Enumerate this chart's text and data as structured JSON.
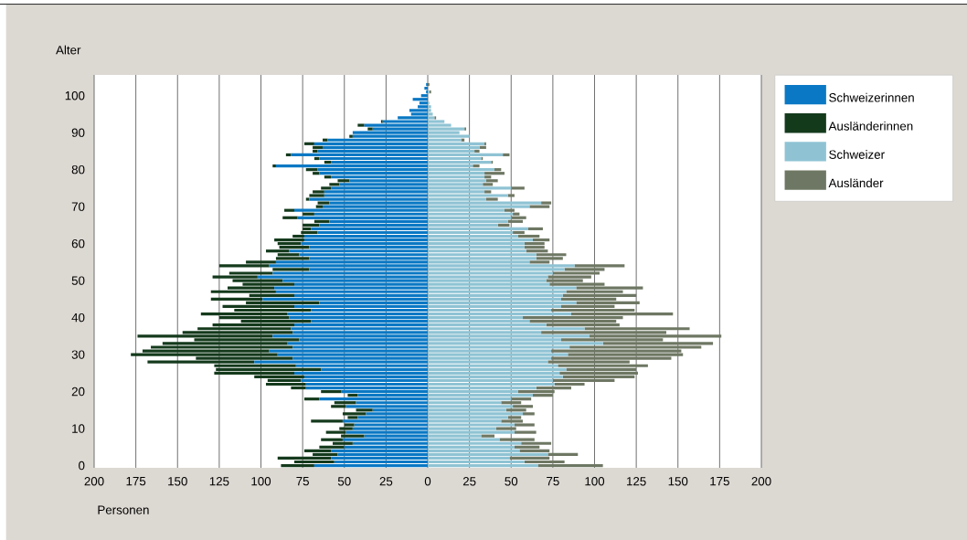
{
  "chart_data": {
    "type": "bar",
    "orientation": "horizontal",
    "stacked": true,
    "xlabel": "Personen",
    "ylabel": "Alter",
    "categories": [
      null,
      null,
      null,
      "100",
      null,
      null,
      null,
      null,
      null,
      null,
      null,
      null,
      null,
      "90",
      null,
      null,
      null,
      null,
      null,
      null,
      null,
      null,
      null,
      "80",
      null,
      null,
      null,
      null,
      null,
      null,
      null,
      null,
      null,
      "70",
      null,
      null,
      null,
      null,
      null,
      null,
      null,
      null,
      null,
      "60",
      null,
      null,
      null,
      null,
      null,
      null,
      null,
      null,
      null,
      "50",
      null,
      null,
      null,
      null,
      null,
      null,
      null,
      null,
      null,
      "40",
      null,
      null,
      null,
      null,
      null,
      null,
      null,
      null,
      null,
      "30",
      null,
      null,
      null,
      null,
      null,
      null,
      null,
      null,
      null,
      "20",
      null,
      null,
      null,
      null,
      null,
      null,
      null,
      null,
      null,
      "10",
      null,
      null,
      null,
      null,
      null,
      null,
      null,
      null,
      null,
      "0"
    ],
    "series": [
      {
        "name": "Schweizerinnen",
        "color": "#0a78c4",
        "values": [
          -1,
          -2,
          -1,
          -4,
          -9,
          -5,
          -6,
          -11,
          -10,
          -18,
          -27,
          -38,
          -33,
          -45,
          -45,
          -60,
          -68,
          -63,
          -66,
          -82,
          -65,
          -58,
          -91,
          -66,
          -65,
          -58,
          -47,
          -53,
          -58,
          -62,
          -62,
          -71,
          -59,
          -63,
          -80,
          -68,
          -78,
          -59,
          -65,
          -70,
          -66,
          -74,
          -74,
          -76,
          -71,
          -83,
          -77,
          -71,
          -91,
          -95,
          -71,
          -93,
          -102,
          -87,
          -80,
          -92,
          -91,
          -80,
          -99,
          -65,
          -80,
          -70,
          -84,
          -83,
          -70,
          -80,
          -82,
          -81,
          -93,
          -77,
          -84,
          -81,
          -95,
          -90,
          -81,
          -104,
          -79,
          -64,
          -80,
          -74,
          -76,
          -73,
          -73,
          -52,
          -42,
          -65,
          -43,
          -49,
          -33,
          -37,
          -42,
          -51,
          -44,
          -45,
          -49,
          -38,
          -51,
          -45,
          -50,
          -58,
          -54,
          -58,
          -56,
          -68
        ]
      },
      {
        "name": "Ausländerinnen",
        "color": "#143a1c",
        "values": [
          0,
          0,
          0,
          0,
          0,
          0,
          0,
          0,
          0,
          0,
          -1,
          -4,
          -3,
          0,
          -2,
          -3,
          -6,
          -6,
          -3,
          -3,
          -3,
          -4,
          -2,
          -7,
          -4,
          -4,
          -7,
          -6,
          -6,
          -7,
          -9,
          -2,
          -7,
          -4,
          -6,
          -7,
          -9,
          -9,
          -10,
          -5,
          -10,
          -7,
          -18,
          -14,
          -18,
          -14,
          -13,
          -20,
          -18,
          -30,
          -22,
          -26,
          -27,
          -30,
          -31,
          -28,
          -39,
          -27,
          -31,
          -44,
          -43,
          -46,
          -52,
          -42,
          -42,
          -49,
          -56,
          -66,
          -81,
          -63,
          -75,
          -85,
          -76,
          -88,
          -58,
          -64,
          -49,
          -63,
          -48,
          -30,
          -20,
          -24,
          -9,
          -12,
          -6,
          -9,
          -13,
          -9,
          -10,
          -14,
          -6,
          -19,
          -6,
          -8,
          -12,
          -14,
          -13,
          -12,
          -15,
          -16,
          -15,
          -32,
          -24,
          -20
        ]
      },
      {
        "name": "Schweizer",
        "color": "#8fc3d4",
        "values": [
          0,
          0,
          1,
          0,
          0,
          1,
          2,
          2,
          3,
          4,
          10,
          14,
          22,
          19,
          25,
          20,
          34,
          31,
          28,
          45,
          32,
          38,
          27,
          40,
          34,
          34,
          35,
          33,
          50,
          34,
          48,
          35,
          68,
          61,
          46,
          51,
          50,
          48,
          42,
          60,
          51,
          54,
          63,
          58,
          58,
          59,
          65,
          65,
          61,
          88,
          82,
          75,
          72,
          71,
          73,
          89,
          83,
          81,
          80,
          89,
          80,
          74,
          86,
          57,
          61,
          71,
          94,
          68,
          97,
          80,
          105,
          85,
          74,
          84,
          74,
          72,
          78,
          83,
          79,
          81,
          75,
          76,
          65,
          54,
          63,
          50,
          44,
          51,
          47,
          57,
          48,
          44,
          52,
          41,
          52,
          32,
          43,
          56,
          52,
          55,
          72,
          49,
          58,
          66
        ]
      },
      {
        "name": "Ausländer",
        "color": "#6e7763",
        "values": [
          1,
          0,
          1,
          0,
          0,
          0,
          0,
          0,
          0,
          1,
          0,
          0,
          1,
          0,
          0,
          2,
          1,
          4,
          3,
          4,
          1,
          1,
          4,
          4,
          12,
          4,
          7,
          6,
          8,
          4,
          4,
          7,
          6,
          12,
          6,
          4,
          9,
          9,
          7,
          9,
          7,
          13,
          10,
          12,
          12,
          13,
          18,
          16,
          12,
          30,
          24,
          28,
          26,
          22,
          33,
          40,
          34,
          44,
          33,
          38,
          32,
          50,
          61,
          60,
          52,
          44,
          63,
          75,
          79,
          61,
          66,
          79,
          78,
          69,
          72,
          49,
          54,
          42,
          47,
          43,
          37,
          18,
          21,
          22,
          12,
          12,
          12,
          12,
          12,
          7,
          8,
          13,
          12,
          12,
          13,
          8,
          21,
          18,
          15,
          18,
          18,
          24,
          24,
          39
        ]
      }
    ],
    "xlim": [
      -200,
      200
    ],
    "xticks": [
      {
        "value": -200,
        "label": "200"
      },
      {
        "value": -175,
        "label": "175"
      },
      {
        "value": -150,
        "label": "150"
      },
      {
        "value": -125,
        "label": "125"
      },
      {
        "value": -100,
        "label": "100"
      },
      {
        "value": -75,
        "label": "75"
      },
      {
        "value": -50,
        "label": "50"
      },
      {
        "value": -25,
        "label": "25"
      },
      0,
      25,
      50,
      75,
      100,
      125,
      150,
      175,
      200
    ],
    "grid": "x",
    "legend": "right"
  }
}
